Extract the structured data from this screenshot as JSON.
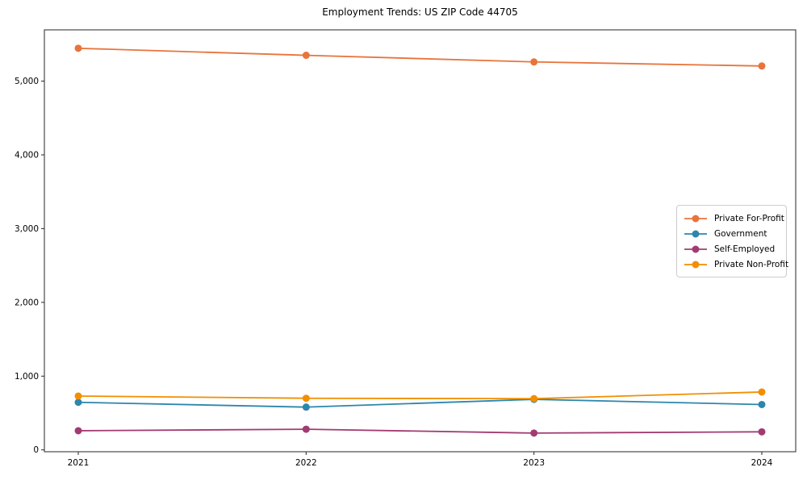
{
  "chart_data": {
    "type": "line",
    "title": "Employment Trends: US ZIP Code 44705",
    "x": [
      2021,
      2022,
      2023,
      2024
    ],
    "xtick_labels": [
      "2021",
      "2022",
      "2023",
      "2024"
    ],
    "series": [
      {
        "name": "Private For-Profit",
        "color": "#E8743B",
        "values": [
          5445,
          5350,
          5260,
          5205
        ]
      },
      {
        "name": "Government",
        "color": "#2E86AB",
        "values": [
          645,
          580,
          685,
          615
        ]
      },
      {
        "name": "Self-Employed",
        "color": "#A23B72",
        "values": [
          260,
          280,
          228,
          245
        ]
      },
      {
        "name": "Private Non-Profit",
        "color": "#F18F01",
        "values": [
          730,
          700,
          695,
          785
        ]
      }
    ],
    "xlabel": "",
    "ylabel": "",
    "ylim": [
      -25,
      5695
    ],
    "yticks": [
      0,
      1000,
      2000,
      3000,
      4000,
      5000
    ],
    "ytick_labels": [
      "0",
      "1,000",
      "2,000",
      "3,000",
      "4,000",
      "5,000"
    ],
    "grid": false,
    "legend_position": "center-right",
    "marker": "circle",
    "axis_color": "#262626"
  }
}
